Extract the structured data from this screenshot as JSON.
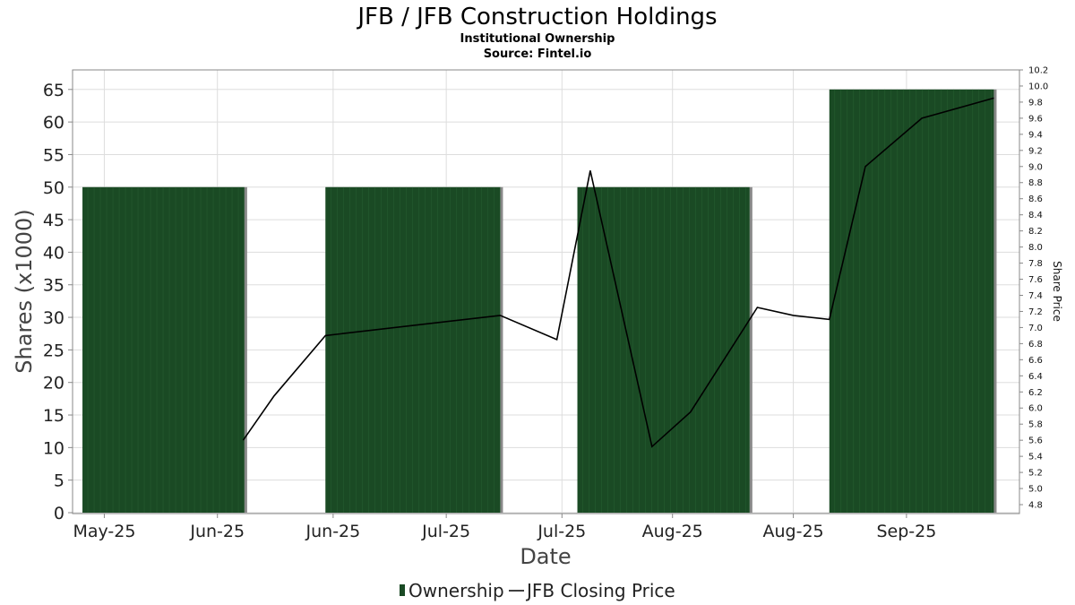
{
  "chart_data": {
    "type": "bar",
    "title": "JFB / JFB Construction Holdings",
    "subtitle": "Institutional Ownership",
    "source": "Source: Fintel.io",
    "xlabel": "Date",
    "ylabel": "Shares (x1000)",
    "y2label": "Share Price",
    "ylim": [
      0,
      68
    ],
    "y2lim": [
      4.7,
      10.2
    ],
    "yticks": [
      0,
      5,
      10,
      15,
      20,
      25,
      30,
      35,
      40,
      45,
      50,
      55,
      60,
      65
    ],
    "y2ticks": [
      4.8,
      5.0,
      5.2,
      5.4,
      5.6,
      5.8,
      6.0,
      6.2,
      6.4,
      6.6,
      6.8,
      7.0,
      7.2,
      7.4,
      7.6,
      7.8,
      8.0,
      8.2,
      8.4,
      8.6,
      8.8,
      9.0,
      9.2,
      9.4,
      9.6,
      9.8,
      10.0,
      10.2
    ],
    "xticks": [
      "May-25",
      "Jun-25",
      "Jun-25",
      "Jul-25",
      "Jul-25",
      "Aug-25",
      "Aug-25",
      "Sep-25"
    ],
    "grid": true,
    "ownership": {
      "name": "Ownership",
      "color": "#1a4a24",
      "bars": [
        {
          "start": 0.35,
          "end": 6.65,
          "value": 50
        },
        {
          "start": 9.8,
          "end": 16.6,
          "value": 50
        },
        {
          "start": 19.6,
          "end": 26.3,
          "value": 50
        },
        {
          "start": 29.4,
          "end": 35.8,
          "value": 65
        }
      ]
    },
    "price": {
      "name": "JFB Closing Price",
      "color": "#000000",
      "points": [
        {
          "x": 6.6,
          "y": 5.6
        },
        {
          "x": 7.8,
          "y": 6.15
        },
        {
          "x": 9.8,
          "y": 6.9
        },
        {
          "x": 16.6,
          "y": 7.15
        },
        {
          "x": 18.8,
          "y": 6.85
        },
        {
          "x": 20.1,
          "y": 8.95
        },
        {
          "x": 22.5,
          "y": 5.52
        },
        {
          "x": 24.0,
          "y": 5.95
        },
        {
          "x": 26.6,
          "y": 7.25
        },
        {
          "x": 28.0,
          "y": 7.15
        },
        {
          "x": 29.4,
          "y": 7.1
        },
        {
          "x": 30.8,
          "y": 9.0
        },
        {
          "x": 33.0,
          "y": 9.6
        },
        {
          "x": 35.8,
          "y": 9.85
        }
      ]
    }
  }
}
